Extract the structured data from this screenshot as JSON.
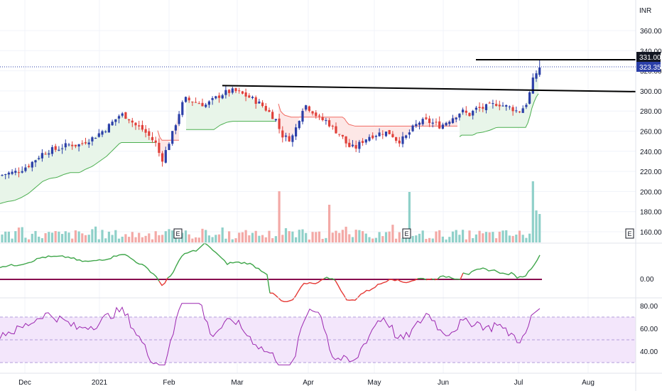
{
  "chart_data": {
    "type": "candlestick",
    "currency": "INR",
    "price_axis": {
      "ticks": [
        "360.00",
        "340.00",
        "320.00",
        "300.00",
        "280.00",
        "260.00",
        "240.00",
        "220.00",
        "200.00",
        "180.00",
        "160.00"
      ],
      "ylim": [
        150,
        372
      ]
    },
    "price_labels": {
      "level": "331.00",
      "last": "323.35"
    },
    "x_axis_labels": [
      "Dec",
      "2021",
      "Feb",
      "Mar",
      "Apr",
      "May",
      "Jun",
      "Jul",
      "Aug"
    ],
    "trendlines": [
      {
        "name": "resistance",
        "from": [
          "2021-02-19",
          305.3
        ],
        "to": [
          "2021-07-31",
          299.3
        ]
      },
      {
        "name": "high",
        "from": [
          "2021-06-27",
          331.0
        ],
        "to": [
          "2021-07-31",
          331.0
        ]
      }
    ],
    "earnings_marker_label": "E",
    "oscillator": {
      "ticks": [
        "0.00"
      ],
      "zero_line": 0
    },
    "rsi": {
      "ticks": [
        "80.00",
        "60.00",
        "40.00"
      ],
      "ylim": [
        25,
        85
      ],
      "band": [
        30,
        70
      ],
      "mid": 50
    },
    "colors": {
      "up": "#2b3fa8",
      "down": "#e0403a",
      "vol_up": "#8fd0c9",
      "vol_down": "#f3a9a6",
      "support_line": "#4caf50",
      "support_fill": "#e8f5e9",
      "resist_line": "#f06b63",
      "resist_fill": "#fde7e6",
      "osc_up": "#3fa64a",
      "osc_down": "#e53935",
      "rsi_line": "#9c27b0",
      "rsi_band": "#f3e6fb",
      "last_badge": "#2b3fa8",
      "level_badge": "#131722",
      "zero_line": "#880e4f"
    }
  }
}
